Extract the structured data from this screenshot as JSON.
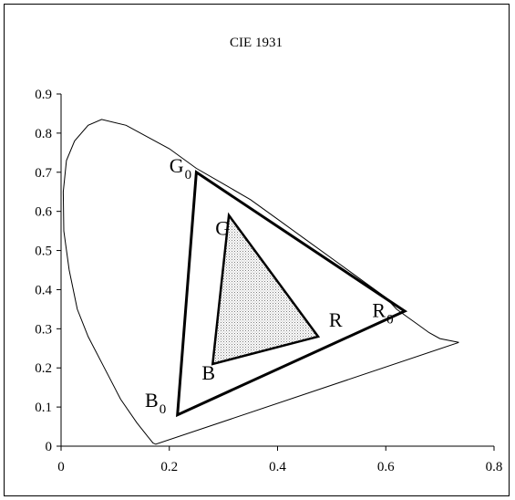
{
  "chart_data": {
    "type": "scatter",
    "title": "CIE 1931",
    "xlabel": "",
    "ylabel": "",
    "xlim": [
      0,
      0.8
    ],
    "ylim": [
      0,
      0.9
    ],
    "x_ticks": [
      "0",
      "0.2",
      "0.4",
      "0.6",
      "0.8"
    ],
    "y_ticks": [
      "0",
      "0.1",
      "0.2",
      "0.3",
      "0.4",
      "0.5",
      "0.6",
      "0.7",
      "0.8",
      "0.9"
    ],
    "grid": false,
    "legend": "none",
    "series": [
      {
        "kind": "spectral-locus",
        "points": [
          [
            0.735,
            0.265
          ],
          [
            0.7,
            0.275
          ],
          [
            0.68,
            0.29
          ],
          [
            0.66,
            0.31
          ],
          [
            0.64,
            0.33
          ],
          [
            0.62,
            0.35
          ],
          [
            0.6,
            0.38
          ],
          [
            0.57,
            0.41
          ],
          [
            0.54,
            0.44
          ],
          [
            0.5,
            0.48
          ],
          [
            0.45,
            0.53
          ],
          [
            0.4,
            0.58
          ],
          [
            0.35,
            0.63
          ],
          [
            0.3,
            0.67
          ],
          [
            0.25,
            0.71
          ],
          [
            0.2,
            0.76
          ],
          [
            0.16,
            0.79
          ],
          [
            0.12,
            0.82
          ],
          [
            0.075,
            0.835
          ],
          [
            0.05,
            0.82
          ],
          [
            0.025,
            0.78
          ],
          [
            0.01,
            0.73
          ],
          [
            0.004,
            0.65
          ],
          [
            0.005,
            0.55
          ],
          [
            0.015,
            0.45
          ],
          [
            0.03,
            0.35
          ],
          [
            0.05,
            0.28
          ],
          [
            0.08,
            0.2
          ],
          [
            0.11,
            0.12
          ],
          [
            0.14,
            0.06
          ],
          [
            0.16,
            0.025
          ],
          [
            0.17,
            0.008
          ],
          [
            0.175,
            0.005
          ],
          [
            0.735,
            0.265
          ]
        ]
      },
      {
        "kind": "gamut-outer",
        "points": [
          [
            0.635,
            0.345
          ],
          [
            0.25,
            0.7
          ],
          [
            0.215,
            0.08
          ]
        ]
      },
      {
        "kind": "gamut-inner",
        "points": [
          [
            0.475,
            0.28
          ],
          [
            0.31,
            0.59
          ],
          [
            0.28,
            0.21
          ]
        ]
      }
    ],
    "annotations": [
      {
        "text": "G",
        "sub": "0",
        "x": 0.2,
        "y": 0.7
      },
      {
        "text": "R",
        "sub": "0",
        "x": 0.575,
        "y": 0.33
      },
      {
        "text": "B",
        "sub": "0",
        "x": 0.155,
        "y": 0.1
      },
      {
        "text": "G",
        "sub": "",
        "x": 0.285,
        "y": 0.54
      },
      {
        "text": "R",
        "sub": "",
        "x": 0.495,
        "y": 0.305
      },
      {
        "text": "B",
        "sub": "",
        "x": 0.26,
        "y": 0.17
      }
    ],
    "colors": {
      "axis": "#000000",
      "locus": "#000000",
      "gamut_outer": "#000000",
      "gamut_inner": "#000000",
      "fill": "#d9d9d9"
    }
  }
}
